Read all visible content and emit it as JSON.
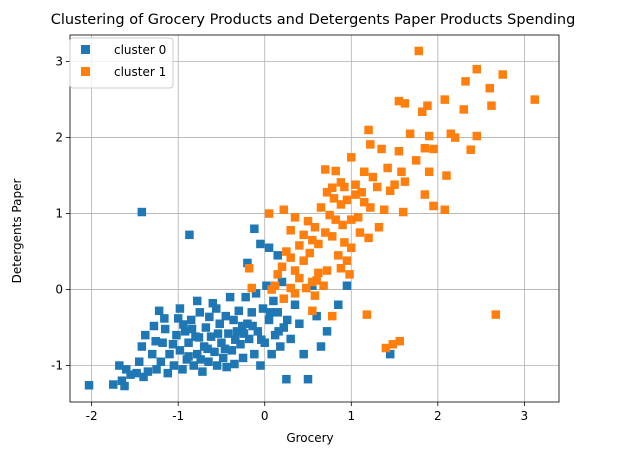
{
  "chart_data": {
    "type": "scatter",
    "title": "Clustering of Grocery Products and Detergents Paper Products Spending",
    "xlabel": "Grocery",
    "ylabel": "Detergents Paper",
    "xlim": [
      -2.25,
      3.4
    ],
    "ylim": [
      -1.48,
      3.35
    ],
    "xticks": [
      -2,
      -1,
      0,
      1,
      2,
      3
    ],
    "yticks": [
      -1,
      0,
      1,
      2,
      3
    ],
    "grid": true,
    "legend_position": "top-left",
    "series": [
      {
        "name": "cluster 0",
        "color": "#1f77b4",
        "marker": "square",
        "points": [
          [
            -2.03,
            -1.26
          ],
          [
            -1.75,
            -1.25
          ],
          [
            -1.65,
            -1.2
          ],
          [
            -1.62,
            -1.27
          ],
          [
            -1.68,
            -1.0
          ],
          [
            -1.6,
            -1.05
          ],
          [
            -1.55,
            -1.12
          ],
          [
            -1.48,
            -1.1
          ],
          [
            -1.45,
            -0.95
          ],
          [
            -1.4,
            -1.15
          ],
          [
            -1.35,
            -1.08
          ],
          [
            -1.42,
            -0.75
          ],
          [
            -1.38,
            -0.6
          ],
          [
            -1.3,
            -0.85
          ],
          [
            -1.25,
            -1.05
          ],
          [
            -1.2,
            -0.95
          ],
          [
            -1.28,
            -0.48
          ],
          [
            -1.22,
            -0.28
          ],
          [
            -1.18,
            -0.7
          ],
          [
            -1.15,
            -0.52
          ],
          [
            -1.1,
            -0.85
          ],
          [
            -1.12,
            -1.1
          ],
          [
            -1.05,
            -1.0
          ],
          [
            -1.02,
            -0.6
          ],
          [
            -1.0,
            -0.38
          ],
          [
            -0.98,
            -0.8
          ],
          [
            -0.95,
            -1.05
          ],
          [
            -0.92,
            -0.55
          ],
          [
            -0.9,
            -0.92
          ],
          [
            -0.88,
            -0.7
          ],
          [
            -0.85,
            -0.4
          ],
          [
            -0.82,
            -1.0
          ],
          [
            -0.8,
            -0.62
          ],
          [
            -0.78,
            -0.85
          ],
          [
            -0.75,
            -0.3
          ],
          [
            -0.72,
            -1.08
          ],
          [
            -0.7,
            -0.75
          ],
          [
            -0.68,
            -0.5
          ],
          [
            -0.65,
            -0.95
          ],
          [
            -0.62,
            -0.62
          ],
          [
            -0.6,
            -0.18
          ],
          [
            -0.58,
            -0.82
          ],
          [
            -0.55,
            -1.0
          ],
          [
            -0.52,
            -0.45
          ],
          [
            -0.5,
            -0.7
          ],
          [
            -0.48,
            -0.9
          ],
          [
            -0.45,
            -0.35
          ],
          [
            -0.42,
            -0.58
          ],
          [
            -0.4,
            -0.1
          ],
          [
            -0.38,
            -0.8
          ],
          [
            -0.35,
            -0.98
          ],
          [
            -0.32,
            -0.55
          ],
          [
            -0.3,
            -0.28
          ],
          [
            -0.28,
            -0.72
          ],
          [
            -0.25,
            -0.9
          ],
          [
            -0.22,
            -0.1
          ],
          [
            -0.2,
            -0.45
          ],
          [
            -0.18,
            -0.65
          ],
          [
            -0.15,
            -0.3
          ],
          [
            -0.12,
            -0.85
          ],
          [
            -0.1,
            -0.05
          ],
          [
            -0.08,
            -0.55
          ],
          [
            -0.05,
            -1.0
          ],
          [
            -0.02,
            -0.25
          ],
          [
            0.0,
            -0.7
          ],
          [
            0.02,
            0.05
          ],
          [
            0.05,
            -0.4
          ],
          [
            0.08,
            -0.85
          ],
          [
            0.1,
            -0.15
          ],
          [
            0.12,
            -0.6
          ],
          [
            0.15,
            -0.3
          ],
          [
            0.18,
            -0.75
          ],
          [
            0.2,
            0.1
          ],
          [
            0.22,
            -0.5
          ],
          [
            0.25,
            -1.18
          ],
          [
            0.3,
            -0.65
          ],
          [
            0.35,
            -0.2
          ],
          [
            0.4,
            -0.45
          ],
          [
            0.45,
            -0.85
          ],
          [
            0.5,
            -1.18
          ],
          [
            0.55,
            0.05
          ],
          [
            0.6,
            -0.35
          ],
          [
            0.65,
            -0.75
          ],
          [
            0.72,
            -0.55
          ],
          [
            0.85,
            -0.2
          ],
          [
            0.95,
            0.05
          ],
          [
            1.45,
            -0.85
          ],
          [
            -1.42,
            1.02
          ],
          [
            -0.87,
            0.72
          ],
          [
            -0.78,
            -0.15
          ],
          [
            -0.2,
            0.35
          ],
          [
            -0.12,
            0.8
          ],
          [
            -0.05,
            0.6
          ],
          [
            0.05,
            0.55
          ],
          [
            0.15,
            0.45
          ],
          [
            -0.98,
            -0.25
          ],
          [
            -0.88,
            -0.88
          ],
          [
            -0.76,
            -0.63
          ],
          [
            -0.66,
            -0.78
          ],
          [
            -0.56,
            -0.25
          ],
          [
            -0.46,
            -0.78
          ],
          [
            -0.36,
            -0.4
          ],
          [
            -0.26,
            -0.48
          ],
          [
            -1.06,
            -0.72
          ],
          [
            -0.94,
            -0.46
          ],
          [
            -0.84,
            -0.52
          ],
          [
            -0.74,
            -0.92
          ],
          [
            -0.64,
            -0.36
          ],
          [
            -0.54,
            -0.58
          ],
          [
            -0.44,
            -1.02
          ],
          [
            -0.34,
            -0.66
          ],
          [
            -0.24,
            -0.58
          ],
          [
            -0.14,
            -0.48
          ],
          [
            -0.04,
            -0.66
          ],
          [
            0.06,
            -0.3
          ],
          [
            0.16,
            -0.55
          ],
          [
            0.26,
            -0.4
          ],
          [
            -1.16,
            -0.38
          ],
          [
            -1.26,
            -0.68
          ]
        ]
      },
      {
        "name": "cluster 1",
        "color": "#ff7f0e",
        "marker": "square",
        "points": [
          [
            1.78,
            3.14
          ],
          [
            2.45,
            2.9
          ],
          [
            2.75,
            2.83
          ],
          [
            2.32,
            2.74
          ],
          [
            2.6,
            2.65
          ],
          [
            3.12,
            2.5
          ],
          [
            2.08,
            2.5
          ],
          [
            2.3,
            2.37
          ],
          [
            2.62,
            2.42
          ],
          [
            1.55,
            2.48
          ],
          [
            1.62,
            2.45
          ],
          [
            1.88,
            2.42
          ],
          [
            1.82,
            2.34
          ],
          [
            2.15,
            2.05
          ],
          [
            2.2,
            2.0
          ],
          [
            2.45,
            2.02
          ],
          [
            1.2,
            2.1
          ],
          [
            1.68,
            2.05
          ],
          [
            1.9,
            2.02
          ],
          [
            2.38,
            1.84
          ],
          [
            1.22,
            1.91
          ],
          [
            1.35,
            1.85
          ],
          [
            1.55,
            1.82
          ],
          [
            1.85,
            1.86
          ],
          [
            1.95,
            1.85
          ],
          [
            1.0,
            1.74
          ],
          [
            1.75,
            1.7
          ],
          [
            1.9,
            1.55
          ],
          [
            1.42,
            1.6
          ],
          [
            1.58,
            1.55
          ],
          [
            0.7,
            1.58
          ],
          [
            0.82,
            1.56
          ],
          [
            0.88,
            1.41
          ],
          [
            1.15,
            1.55
          ],
          [
            1.25,
            1.48
          ],
          [
            1.62,
            1.42
          ],
          [
            2.1,
            1.5
          ],
          [
            0.72,
            1.28
          ],
          [
            0.78,
            1.34
          ],
          [
            0.92,
            1.35
          ],
          [
            1.05,
            1.38
          ],
          [
            1.12,
            1.28
          ],
          [
            1.3,
            1.35
          ],
          [
            1.45,
            1.3
          ],
          [
            1.5,
            1.38
          ],
          [
            1.85,
            1.25
          ],
          [
            1.95,
            1.1
          ],
          [
            0.8,
            1.2
          ],
          [
            0.88,
            1.12
          ],
          [
            0.95,
            1.18
          ],
          [
            1.05,
            1.25
          ],
          [
            1.15,
            1.15
          ],
          [
            1.22,
            1.08
          ],
          [
            1.38,
            1.05
          ],
          [
            1.6,
            1.02
          ],
          [
            2.08,
            1.05
          ],
          [
            0.05,
            1.0
          ],
          [
            0.22,
            1.05
          ],
          [
            0.65,
            1.08
          ],
          [
            0.75,
            0.98
          ],
          [
            0.82,
            0.92
          ],
          [
            0.9,
            0.85
          ],
          [
            1.0,
            0.92
          ],
          [
            1.08,
            0.95
          ],
          [
            0.35,
            0.95
          ],
          [
            0.5,
            0.9
          ],
          [
            0.58,
            0.82
          ],
          [
            0.7,
            0.75
          ],
          [
            0.78,
            0.7
          ],
          [
            0.92,
            0.62
          ],
          [
            1.0,
            0.55
          ],
          [
            0.3,
            0.78
          ],
          [
            0.45,
            0.72
          ],
          [
            0.55,
            0.65
          ],
          [
            0.62,
            0.6
          ],
          [
            0.4,
            0.58
          ],
          [
            0.25,
            0.5
          ],
          [
            0.3,
            0.42
          ],
          [
            0.45,
            0.38
          ],
          [
            0.52,
            0.48
          ],
          [
            0.35,
            0.25
          ],
          [
            0.2,
            0.3
          ],
          [
            0.15,
            0.2
          ],
          [
            0.4,
            0.15
          ],
          [
            0.55,
            0.1
          ],
          [
            0.62,
            0.22
          ],
          [
            0.72,
            0.25
          ],
          [
            0.88,
            0.28
          ],
          [
            0.98,
            0.2
          ],
          [
            -0.18,
            0.28
          ],
          [
            0.08,
            0.0
          ],
          [
            0.12,
            0.05
          ],
          [
            0.3,
            0.02
          ],
          [
            0.35,
            -0.05
          ],
          [
            0.48,
            0.02
          ],
          [
            0.58,
            -0.08
          ],
          [
            -0.15,
            0.02
          ],
          [
            0.22,
            -0.12
          ],
          [
            0.55,
            -0.28
          ],
          [
            0.78,
            -0.35
          ],
          [
            1.18,
            -0.33
          ],
          [
            1.4,
            -0.77
          ],
          [
            1.48,
            -0.72
          ],
          [
            1.56,
            -0.68
          ],
          [
            2.67,
            -0.33
          ],
          [
            0.6,
            0.12
          ],
          [
            0.68,
            0.05
          ],
          [
            0.85,
            0.45
          ],
          [
            0.95,
            0.38
          ],
          [
            1.1,
            0.75
          ],
          [
            1.2,
            0.68
          ],
          [
            1.32,
            0.82
          ]
        ]
      }
    ]
  }
}
